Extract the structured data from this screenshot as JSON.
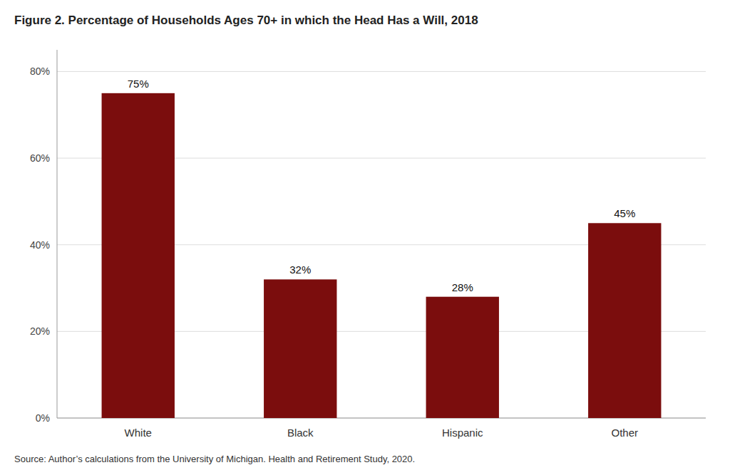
{
  "chart_data": {
    "type": "bar",
    "title": "Figure 2. Percentage of Households Ages 70+ in which the Head Has a Will, 2018",
    "categories": [
      "White",
      "Black",
      "Hispanic",
      "Other"
    ],
    "values": [
      75,
      32,
      28,
      45
    ],
    "value_labels": [
      "75%",
      "32%",
      "28%",
      "45%"
    ],
    "data_labels": true,
    "color": "#7B0D0D",
    "ylim": [
      0,
      85
    ],
    "yticks": [
      {
        "value": 0,
        "label": "0%"
      },
      {
        "value": 20,
        "label": "20%"
      },
      {
        "value": 40,
        "label": "40%"
      },
      {
        "value": 60,
        "label": "60%"
      },
      {
        "value": 80,
        "label": "80%"
      }
    ],
    "grid": true,
    "annotations": [
      "Source: Author’s calculations from the University of Michigan. Health and Retirement Study, 2020."
    ]
  }
}
